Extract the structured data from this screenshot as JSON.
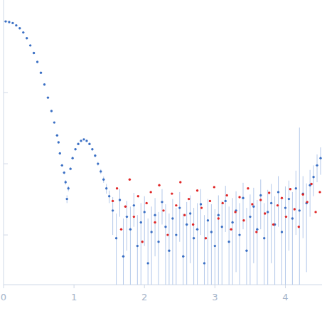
{
  "chart_data": {
    "type": "scatter",
    "log": "y",
    "tick_labels": "x",
    "xlim": [
      0,
      4.52
    ],
    "ylim": [
      0.0002,
      2
    ],
    "xticks": [
      0,
      1,
      2,
      3,
      4
    ],
    "yticks": [
      0.001,
      0.01,
      0.1,
      1
    ],
    "series": [
      {
        "color": "#3a6fc4",
        "marker": "circle",
        "x": [
          0.03,
          0.08,
          0.13,
          0.18,
          0.23,
          0.28,
          0.33,
          0.38,
          0.43,
          0.48,
          0.53,
          0.58,
          0.63,
          0.68,
          0.72,
          0.76,
          0.78,
          0.8,
          0.83,
          0.86,
          0.88,
          0.9,
          0.92,
          0.95,
          0.98,
          1.02,
          1.06,
          1.1,
          1.14,
          1.18,
          1.22,
          1.26,
          1.3,
          1.34,
          1.38,
          1.42,
          1.46,
          1.5,
          1.55,
          1.6,
          1.65,
          1.7,
          1.75,
          1.8,
          1.85,
          1.9,
          1.95,
          2.0,
          2.05,
          2.1,
          2.15,
          2.2,
          2.25,
          2.3,
          2.35,
          2.4,
          2.45,
          2.5,
          2.55,
          2.6,
          2.65,
          2.7,
          2.75,
          2.8,
          2.85,
          2.9,
          2.95,
          3.0,
          3.05,
          3.1,
          3.15,
          3.2,
          3.25,
          3.3,
          3.35,
          3.4,
          3.45,
          3.5,
          3.55,
          3.6,
          3.65,
          3.7,
          3.75,
          3.8,
          3.85,
          3.9,
          3.95,
          4.0,
          4.05,
          4.1,
          4.15,
          4.2,
          4.25,
          4.3,
          4.35,
          4.4,
          4.45,
          4.5
        ],
        "values": [
          1.0,
          0.98,
          0.95,
          0.88,
          0.8,
          0.7,
          0.58,
          0.46,
          0.36,
          0.27,
          0.19,
          0.13,
          0.085,
          0.055,
          0.038,
          0.025,
          0.02,
          0.014,
          0.0095,
          0.0075,
          0.0055,
          0.0032,
          0.0045,
          0.0085,
          0.012,
          0.016,
          0.019,
          0.021,
          0.022,
          0.021,
          0.019,
          0.016,
          0.013,
          0.01,
          0.0078,
          0.006,
          0.0045,
          0.0035,
          0.0022,
          0.0009,
          0.0031,
          0.0005,
          0.0018,
          0.0012,
          0.0026,
          0.0007,
          0.0015,
          0.0021,
          0.0004,
          0.0011,
          0.0019,
          0.0008,
          0.0029,
          0.0013,
          0.0006,
          0.0017,
          0.001,
          0.0024,
          0.0005,
          0.0014,
          0.002,
          0.0009,
          0.0012,
          0.0027,
          0.0004,
          0.0016,
          0.0011,
          0.0007,
          0.0019,
          0.0013,
          0.003,
          0.0008,
          0.0015,
          0.0022,
          0.001,
          0.0033,
          0.0006,
          0.0018,
          0.0025,
          0.0012,
          0.0036,
          0.0009,
          0.0021,
          0.0028,
          0.0014,
          0.004,
          0.0011,
          0.0024,
          0.0032,
          0.0017,
          0.0045,
          0.0022,
          0.0038,
          0.0028,
          0.005,
          0.0065,
          0.0095,
          0.012
        ],
        "errors": [
          0.01,
          0.01,
          0.01,
          0.009,
          0.008,
          0.007,
          0.006,
          0.005,
          0.004,
          0.003,
          0.002,
          0.0015,
          0.001,
          0.0008,
          0.0006,
          0.0005,
          0.0005,
          0.0004,
          0.0004,
          0.0004,
          0.0004,
          0.0004,
          0.0004,
          0.0004,
          0.0005,
          0.0005,
          0.0006,
          0.0006,
          0.0006,
          0.0006,
          0.0006,
          0.0006,
          0.0006,
          0.0006,
          0.0006,
          0.0006,
          0.0007,
          0.0007,
          0.0012,
          0.0011,
          0.0013,
          0.0012,
          0.0012,
          0.0013,
          0.0013,
          0.0012,
          0.0013,
          0.0014,
          0.0013,
          0.0014,
          0.0014,
          0.0013,
          0.0015,
          0.0014,
          0.0014,
          0.0015,
          0.0014,
          0.0016,
          0.0015,
          0.0015,
          0.0016,
          0.0015,
          0.0016,
          0.0017,
          0.0015,
          0.0016,
          0.0016,
          0.0016,
          0.0017,
          0.0017,
          0.0019,
          0.0017,
          0.0018,
          0.0019,
          0.0018,
          0.0021,
          0.0018,
          0.0019,
          0.0021,
          0.0019,
          0.0024,
          0.0019,
          0.0022,
          0.0024,
          0.0021,
          0.0027,
          0.0021,
          0.0024,
          0.0026,
          0.0023,
          0.0035,
          0.03,
          0.0029,
          0.0025,
          0.0032,
          0.003,
          0.004,
          0.005
        ]
      },
      {
        "color": "#e02626",
        "marker": "circle",
        "x": [
          1.55,
          1.61,
          1.67,
          1.73,
          1.79,
          1.85,
          1.91,
          1.97,
          2.03,
          2.09,
          2.15,
          2.21,
          2.27,
          2.33,
          2.39,
          2.45,
          2.51,
          2.57,
          2.63,
          2.69,
          2.75,
          2.81,
          2.87,
          2.93,
          2.99,
          3.05,
          3.11,
          3.17,
          3.23,
          3.29,
          3.35,
          3.41,
          3.47,
          3.53,
          3.59,
          3.65,
          3.71,
          3.77,
          3.83,
          3.89,
          3.95,
          4.01,
          4.07,
          4.13,
          4.19,
          4.25,
          4.31,
          4.37,
          4.43,
          4.49
        ],
        "values": [
          0.003,
          0.0045,
          0.0012,
          0.0025,
          0.006,
          0.0018,
          0.0035,
          0.0008,
          0.0028,
          0.004,
          0.0015,
          0.005,
          0.0022,
          0.001,
          0.0038,
          0.0026,
          0.0055,
          0.0019,
          0.0032,
          0.0014,
          0.0042,
          0.0024,
          0.0009,
          0.003,
          0.0047,
          0.0017,
          0.0028,
          0.0036,
          0.0012,
          0.0021,
          0.0034,
          0.0016,
          0.0045,
          0.0027,
          0.0011,
          0.0031,
          0.002,
          0.0039,
          0.0014,
          0.0026,
          0.0033,
          0.0018,
          0.0044,
          0.0023,
          0.0013,
          0.0037,
          0.0029,
          0.0052,
          0.0021,
          0.004
        ]
      }
    ]
  }
}
